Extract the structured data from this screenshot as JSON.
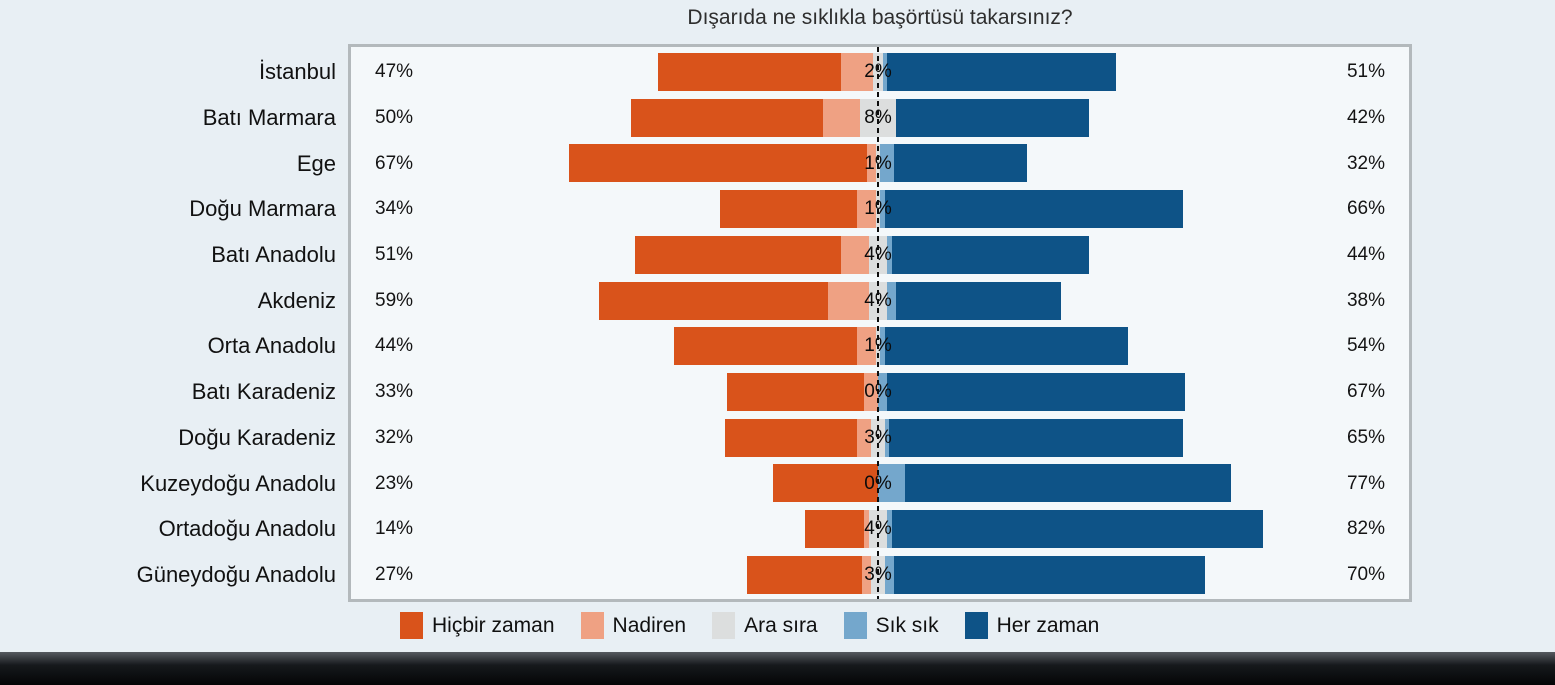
{
  "chart": {
    "title": "Dışarıda ne sıklıkla başörtüsü takarsınız?",
    "panel_background": "#f4f8fa",
    "frame_border_color": "#b3b9bc",
    "center_line_color": "#0d0d0d",
    "page_background": "#e8eff4"
  },
  "chart_data": {
    "type": "bar",
    "variant": "diverging_stacked_likert",
    "title": "Dışarıda ne sıklıkla başörtüsü takarsınız?",
    "legend_position": "bottom",
    "center_baseline": "dashed vertical line between negative and positive answers",
    "categories": [
      "İstanbul",
      "Batı Marmara",
      "Ege",
      "Doğu Marmara",
      "Batı Anadolu",
      "Akdeniz",
      "Orta Anadolu",
      "Batı Karadeniz",
      "Doğu Karadeniz",
      "Kuzeydoğu Anadolu",
      "Ortadoğu Anadolu",
      "Güneydoğu Anadolu"
    ],
    "series": [
      {
        "name": "Hiçbir zaman",
        "color": "#d9531b",
        "values": [
          40,
          42,
          65,
          30,
          45,
          50,
          40,
          30,
          29,
          23,
          13,
          25
        ]
      },
      {
        "name": "Nadiren",
        "color": "#efa183",
        "values": [
          7,
          8,
          2,
          4,
          6,
          9,
          4,
          3,
          3,
          0,
          1,
          2
        ]
      },
      {
        "name": "Ara sıra",
        "color": "#dcdede",
        "values": [
          2,
          8,
          1,
          1,
          4,
          4,
          1,
          0,
          3,
          0,
          4,
          3
        ]
      },
      {
        "name": "Sık sık",
        "color": "#74a7cc",
        "values": [
          1,
          0,
          3,
          1,
          1,
          2,
          1,
          2,
          1,
          6,
          1,
          2
        ]
      },
      {
        "name": "Her zaman",
        "color": "#0e5387",
        "values": [
          50,
          42,
          29,
          65,
          43,
          36,
          53,
          65,
          64,
          71,
          81,
          68
        ]
      }
    ],
    "displayed_labels": {
      "left": [
        "47%",
        "50%",
        "67%",
        "34%",
        "51%",
        "59%",
        "44%",
        "33%",
        "32%",
        "23%",
        "14%",
        "27%"
      ],
      "middle": [
        "2%",
        "8%",
        "1%",
        "1%",
        "4%",
        "4%",
        "1%",
        "0%",
        "3%",
        "0%",
        "4%",
        "3%"
      ],
      "right": [
        "51%",
        "42%",
        "32%",
        "66%",
        "44%",
        "38%",
        "54%",
        "67%",
        "65%",
        "77%",
        "82%",
        "70%"
      ]
    },
    "label_meaning": {
      "left": "Hiçbir zaman + Nadiren",
      "middle": "Ara sıra",
      "right": "Sık sık + Her zaman"
    }
  }
}
